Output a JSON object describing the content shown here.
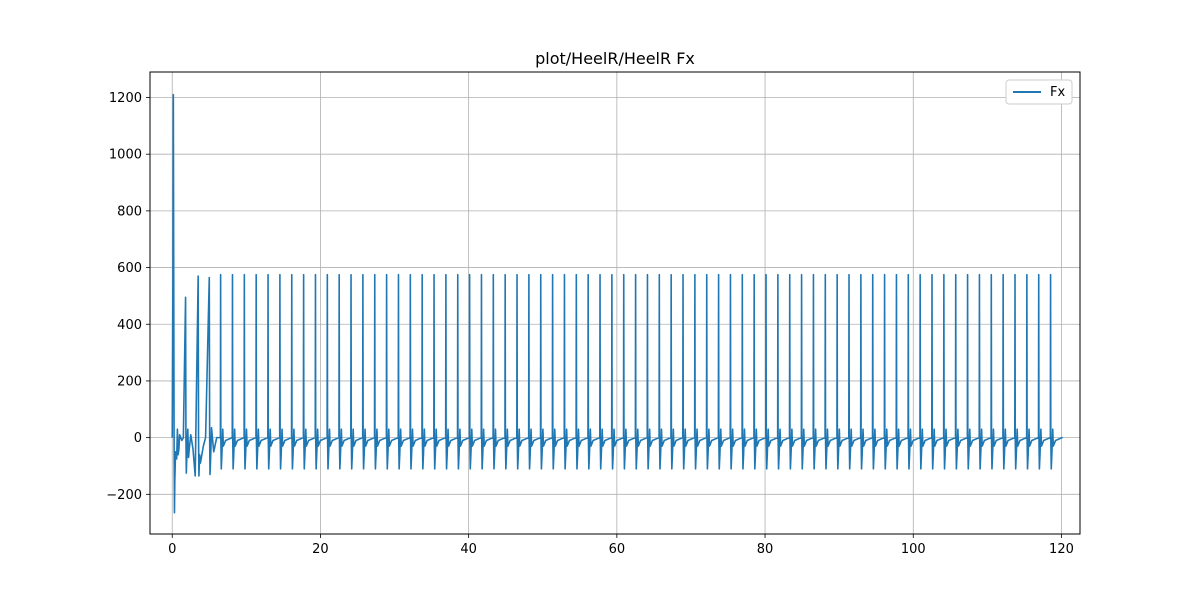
{
  "chart_data": {
    "type": "line",
    "title": "plot/HeelR/HeelR Fx",
    "xlabel": "",
    "ylabel": "",
    "xlim": [
      -3,
      122.5
    ],
    "ylim": [
      -340,
      1290
    ],
    "xticks": [
      0,
      20,
      40,
      60,
      80,
      100,
      120
    ],
    "yticks": [
      -200,
      0,
      200,
      400,
      600,
      800,
      1000,
      1200
    ],
    "xtick_labels": [
      "0",
      "20",
      "40",
      "60",
      "80",
      "100",
      "120"
    ],
    "ytick_labels": [
      "−200",
      "0",
      "200",
      "400",
      "600",
      "800",
      "1000",
      "1200"
    ],
    "grid": true,
    "legend_position": "top-right",
    "series": [
      {
        "name": "Fx",
        "color": "#1f77b4",
        "initial_segment": {
          "x": [
            0.0,
            0.1,
            0.15,
            0.2,
            0.25,
            0.3,
            0.35,
            0.45,
            0.6,
            0.7,
            0.8,
            0.9,
            1.0,
            1.3,
            1.5,
            1.8,
            1.85,
            1.9,
            2.0,
            2.1,
            2.2,
            2.3,
            2.5,
            2.8,
            3.1,
            3.5,
            3.55,
            3.6,
            3.7,
            3.8,
            4.2,
            4.5,
            5.0,
            5.05,
            5.1,
            5.2,
            5.3,
            5.6,
            6.0
          ],
          "y": [
            0,
            600,
            1210,
            600,
            0,
            -265,
            -150,
            -50,
            -75,
            30,
            -60,
            -40,
            10,
            -10,
            0,
            495,
            0,
            -125,
            -40,
            30,
            -70,
            -40,
            10,
            -40,
            -135,
            570,
            0,
            -135,
            -60,
            -90,
            -30,
            0,
            565,
            0,
            -130,
            -60,
            35,
            -50,
            0
          ]
        },
        "cycle": {
          "start": 6.5,
          "period": 1.6,
          "end": 119.5,
          "peak": 575,
          "trough": -110,
          "rebound": 30,
          "settle": -30
        },
        "final_value": 0,
        "final_x": 120
      }
    ]
  }
}
